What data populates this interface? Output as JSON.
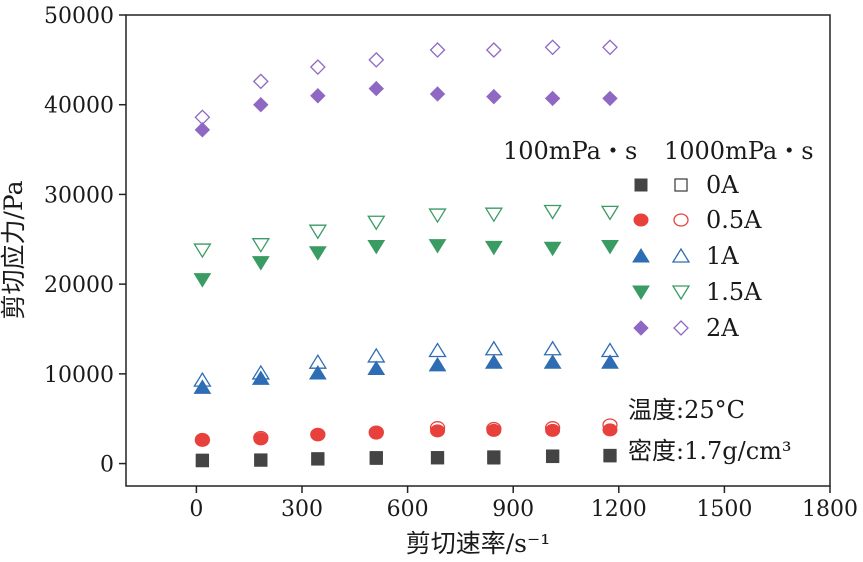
{
  "chart_data": {
    "type": "scatter",
    "title": "",
    "xlabel": "剪切速率/s⁻¹",
    "ylabel": "剪切应力/Pa",
    "xlim": [
      -200,
      1800
    ],
    "ylim": [
      -2500,
      50000
    ],
    "xticks": [
      0,
      300,
      600,
      900,
      1200,
      1500,
      1800
    ],
    "yticks": [
      0,
      10000,
      20000,
      30000,
      40000,
      50000
    ],
    "xtick_labels": [
      "0",
      "300",
      "600",
      "900",
      "1200",
      "1500",
      "1800"
    ],
    "ytick_labels": [
      "0",
      "10000",
      "20000",
      "30000",
      "40000",
      "50000"
    ],
    "legend_header_filled": "100mPa・s",
    "legend_header_hollow": "1000mPa・s",
    "legend_placement": "right",
    "x": [
      17,
      183,
      345,
      511,
      685,
      845,
      1012,
      1175
    ],
    "series": [
      {
        "name": "0A",
        "marker": "square",
        "color": "#444444",
        "filled_values": [
          380,
          390,
          530,
          580,
          650,
          620,
          780,
          860
        ],
        "hollow_values": [
          330,
          390,
          520,
          650,
          650,
          730,
          830,
          900
        ]
      },
      {
        "name": "0.5A",
        "marker": "circle",
        "color": "#e8413c",
        "filled_values": [
          2700,
          2750,
          3200,
          3400,
          3650,
          3700,
          3700,
          3750
        ],
        "hollow_values": [
          2600,
          2900,
          3250,
          3500,
          4000,
          3900,
          4000,
          4300
        ]
      },
      {
        "name": "1A",
        "marker": "triangle-up",
        "color": "#2e6db3",
        "filled_values": [
          8500,
          9500,
          10100,
          10600,
          11000,
          11300,
          11300,
          11300
        ],
        "hollow_values": [
          9300,
          10100,
          11300,
          12000,
          12600,
          12800,
          12800,
          12600
        ]
      },
      {
        "name": "1.5A",
        "marker": "triangle-down",
        "color": "#3a9b63",
        "filled_values": [
          20500,
          22400,
          23500,
          24200,
          24300,
          24100,
          24000,
          24200
        ],
        "hollow_values": [
          23800,
          24400,
          25900,
          26900,
          27700,
          27800,
          28100,
          28000
        ]
      },
      {
        "name": "2A",
        "marker": "diamond",
        "color": "#8e68c2",
        "filled_values": [
          37200,
          40000,
          41000,
          41800,
          41200,
          40900,
          40700,
          40700
        ],
        "hollow_values": [
          38600,
          42600,
          44200,
          45000,
          46100,
          46100,
          46400,
          46400
        ]
      }
    ],
    "annotations": [
      "温度:25°C",
      "密度:1.7g/cm³"
    ]
  }
}
